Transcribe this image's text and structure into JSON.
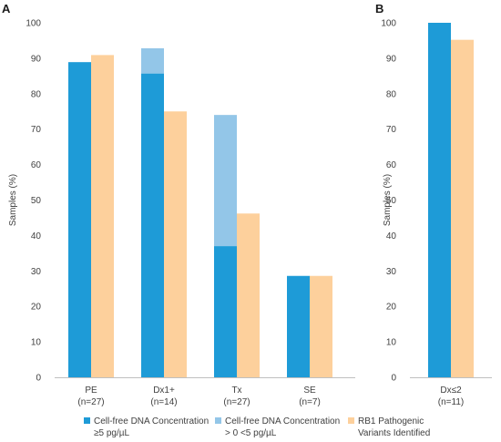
{
  "colors": {
    "high": "#1e9bd7",
    "low": "#93c6e8",
    "rb1": "#fdd09c",
    "axis": "#bfbfbf",
    "text": "#404040"
  },
  "chart_data": [
    {
      "panel": "A",
      "type": "bar",
      "stacked_first_series": true,
      "categories": [
        "PE",
        "Dx1+",
        "Tx",
        "SE"
      ],
      "sublabels": [
        "(n=27)",
        "(n=14)",
        "(n=27)",
        "(n=7)"
      ],
      "ylabel": "Samples (%)",
      "ylim": [
        0,
        100
      ],
      "yticks": [
        0,
        10,
        20,
        30,
        40,
        50,
        60,
        70,
        80,
        90,
        100
      ],
      "series": [
        {
          "key": "high",
          "values": [
            88.9,
            85.7,
            37.0,
            28.6
          ]
        },
        {
          "key": "low",
          "values": [
            0,
            7.1,
            37.0,
            0
          ]
        },
        {
          "key": "rb1",
          "values": [
            90.9,
            75.0,
            46.2,
            28.6
          ]
        }
      ]
    },
    {
      "panel": "B",
      "type": "bar",
      "stacked_first_series": true,
      "categories": [
        "Dx≤2"
      ],
      "sublabels": [
        "(n=11)"
      ],
      "ylabel": "Samples (%)",
      "ylim": [
        0,
        100
      ],
      "yticks": [
        0,
        10,
        20,
        30,
        40,
        50,
        60,
        70,
        80,
        90,
        100
      ],
      "series": [
        {
          "key": "high",
          "values": [
            100
          ]
        },
        {
          "key": "low",
          "values": [
            0
          ]
        },
        {
          "key": "rb1",
          "values": [
            95.2
          ]
        }
      ]
    }
  ],
  "legend": [
    {
      "key": "high",
      "line1": "Cell-free DNA Concentration",
      "line2": "≥5 pg/µL"
    },
    {
      "key": "low",
      "line1": "Cell-free DNA Concentration",
      "line2": "> 0 <5 pg/µL"
    },
    {
      "key": "rb1",
      "line1": "RB1 Pathogenic",
      "line2": "Variants Identified"
    }
  ]
}
